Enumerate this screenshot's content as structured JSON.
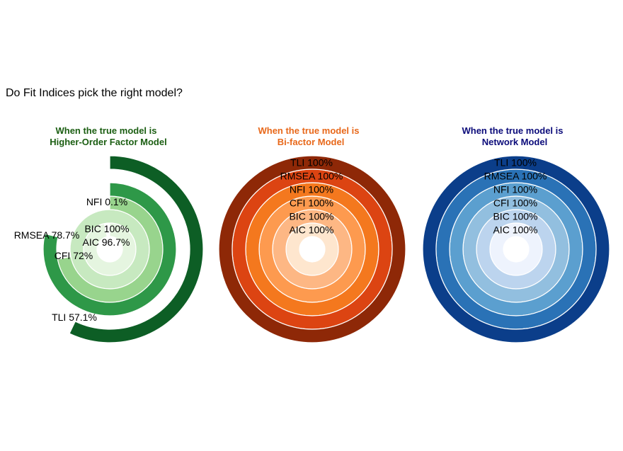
{
  "title": "Do Fit Indices pick the right model?",
  "chart_data": [
    {
      "type": "radial-bar",
      "title_line1": "When the true model is",
      "title_line2": "Higher-Order Factor Model",
      "title_color": "#1b5e12",
      "ylim": [
        0,
        100
      ],
      "categories": [
        "AIC",
        "BIC",
        "CFI",
        "RMSEA",
        "NFI",
        "TLI"
      ],
      "values": [
        96.7,
        100,
        72,
        78.7,
        0.1,
        57.1
      ],
      "labels": [
        "AIC 96.7%",
        "BIC 100%",
        "CFI 72%",
        "RMSEA 78.7%",
        "NFI 0.1%",
        "TLI 57.1%"
      ],
      "colors": [
        "#e5f5e0",
        "#c7e9c0",
        "#98d48d",
        "#2e9848",
        "#2e9848",
        "#0d5e25"
      ]
    },
    {
      "type": "radial-bar",
      "title_line1": "When the true model is",
      "title_line2": "Bi-factor Model",
      "title_color": "#e8681a",
      "ylim": [
        0,
        100
      ],
      "categories": [
        "AIC",
        "BIC",
        "CFI",
        "NFI",
        "RMSEA",
        "TLI"
      ],
      "values": [
        100,
        100,
        100,
        100,
        100,
        100
      ],
      "labels": [
        "AIC 100%",
        "BIC 100%",
        "CFI 100%",
        "NFI 100%",
        "RMSEA 100%",
        "TLI 100%"
      ],
      "colors": [
        "#fee6ce",
        "#fdb784",
        "#fd9a4f",
        "#f4781e",
        "#dc4412",
        "#8e2807"
      ]
    },
    {
      "type": "radial-bar",
      "title_line1": "When the true model is",
      "title_line2": "Network Model",
      "title_color": "#0b0b7a",
      "ylim": [
        0,
        100
      ],
      "categories": [
        "AIC",
        "BIC",
        "CFI",
        "NFI",
        "RMSEA",
        "TLI"
      ],
      "values": [
        100,
        100,
        100,
        100,
        100,
        100
      ],
      "labels": [
        "AIC 100%",
        "BIC 100%",
        "CFI 100%",
        "NFI 100%",
        "RMSEA 100%",
        "TLI 100%"
      ],
      "colors": [
        "#eef3fd",
        "#bcd4ee",
        "#92bfdf",
        "#5b9fcf",
        "#2a72b6",
        "#0b3e8a"
      ]
    }
  ]
}
